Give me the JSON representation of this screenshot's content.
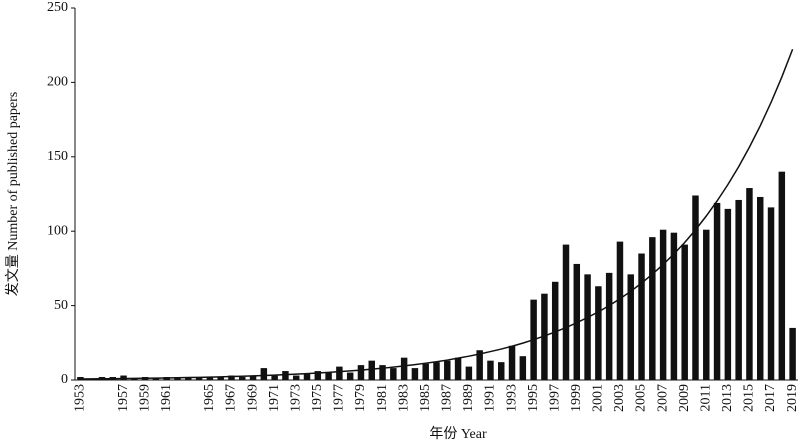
{
  "chart_data": {
    "type": "bar",
    "x_label": "年份 Year",
    "y_label": "发文量 Number of published papers",
    "categories": [
      "1953",
      null,
      null,
      null,
      "1957",
      null,
      "1959",
      null,
      "1961",
      null,
      null,
      null,
      "1965",
      null,
      "1967",
      null,
      "1969",
      null,
      "1971",
      null,
      "1973",
      null,
      "1975",
      null,
      "1977",
      null,
      "1979",
      null,
      "1981",
      null,
      "1983",
      null,
      "1985",
      null,
      "1987",
      null,
      "1989",
      null,
      "1991",
      null,
      "1993",
      null,
      "1995",
      null,
      "1997",
      null,
      "1999",
      null,
      "2001",
      null,
      "2003",
      null,
      "2005",
      null,
      "2007",
      null,
      "2009",
      null,
      "2011",
      null,
      "2013",
      null,
      "2015",
      null,
      "2017",
      null,
      "2019"
    ],
    "series": [
      {
        "type": "bar",
        "color": "#111111",
        "values": [
          2,
          1,
          2,
          2,
          3,
          1,
          2,
          1,
          2,
          2,
          2,
          2,
          2,
          2,
          3,
          2,
          3,
          8,
          3,
          6,
          3,
          4,
          6,
          5,
          9,
          5,
          10,
          13,
          10,
          8,
          15,
          8,
          11,
          12,
          13,
          15,
          9,
          20,
          13,
          12,
          23,
          16,
          54,
          58,
          66,
          91,
          78,
          71,
          63,
          72,
          93,
          71,
          85,
          96,
          101,
          99,
          91,
          124,
          101,
          119,
          115,
          121,
          129,
          123,
          116,
          140,
          35
        ]
      },
      {
        "type": "line",
        "color": "#111111",
        "values": [
          0.68,
          0.74,
          0.81,
          0.88,
          0.97,
          1.06,
          1.15,
          1.26,
          1.37,
          1.5,
          1.64,
          1.79,
          1.95,
          2.13,
          2.33,
          2.54,
          2.77,
          3.03,
          3.3,
          3.61,
          3.94,
          4.3,
          4.69,
          5.12,
          5.59,
          6.1,
          6.66,
          7.27,
          7.94,
          8.67,
          9.46,
          10.3,
          11.3,
          12.3,
          13.4,
          14.7,
          16.0,
          17.5,
          19.1,
          20.8,
          22.7,
          24.8,
          27.1,
          29.6,
          32.3,
          35.2,
          38.5,
          42.0,
          45.8,
          50.0,
          54.6,
          59.6,
          65.1,
          71.1,
          77.6,
          84.7,
          92.4,
          100.9,
          110.2,
          120.3,
          131.3,
          143.3,
          156.5,
          170.8,
          186.5,
          203.6,
          222.3
        ]
      }
    ],
    "ylim": [
      0,
      250
    ],
    "yticks": [
      0,
      50,
      100,
      150,
      200,
      250
    ]
  }
}
